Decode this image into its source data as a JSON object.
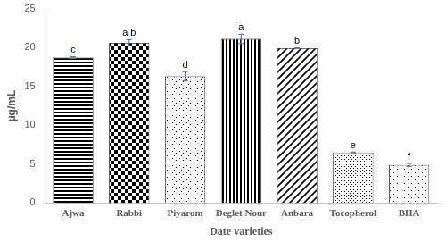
{
  "chart_data": {
    "type": "bar",
    "x_label": "Date varieties",
    "y_label": "µg/mL",
    "categories": [
      "Ajwa",
      "Rabbi",
      "Piyarom",
      "Deglet Nour",
      "Anbara",
      "Tocopherol",
      "BHA"
    ],
    "values": [
      18.7,
      20.6,
      16.3,
      21.1,
      19.9,
      6.5,
      4.9
    ],
    "errors": [
      0.1,
      0.4,
      0.6,
      0.6,
      0.05,
      0.05,
      0.2
    ],
    "annotations": [
      "c",
      "a b",
      "d",
      "a",
      "b",
      "e",
      "f"
    ],
    "color": "#000000",
    "ylim": [
      0,
      25
    ],
    "yticks": [
      0,
      5,
      10,
      15,
      20,
      25
    ],
    "grid": false
  }
}
